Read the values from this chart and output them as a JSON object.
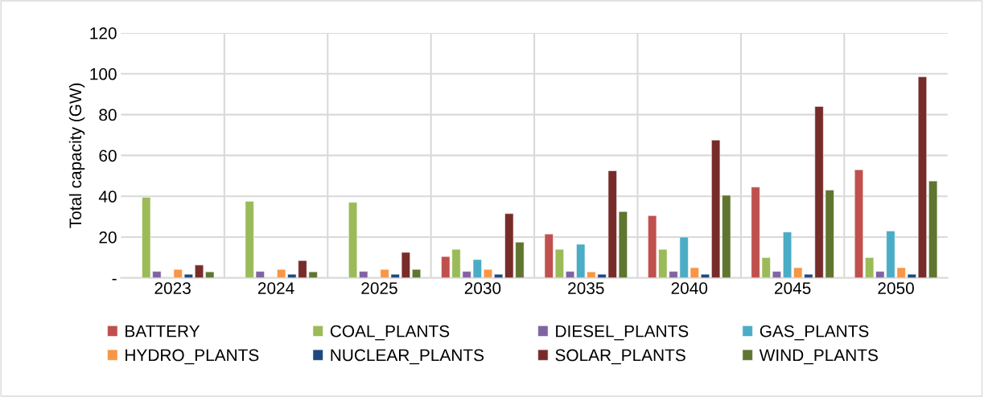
{
  "chart_data": {
    "type": "bar",
    "ylabel": "Total capacity (GW)",
    "categories": [
      "2023",
      "2024",
      "2025",
      "2030",
      "2035",
      "2040",
      "2045",
      "2050"
    ],
    "series": [
      {
        "name": "BATTERY",
        "color": "#c0504d",
        "values": [
          null,
          null,
          null,
          10.5,
          21.5,
          30.5,
          44.5,
          53
        ]
      },
      {
        "name": "COAL_PLANTS",
        "color": "#9bbb59",
        "values": [
          39.5,
          37.5,
          37,
          14,
          14,
          14,
          10,
          10
        ]
      },
      {
        "name": "DIESEL_PLANTS",
        "color": "#8064a2",
        "values": [
          3.2,
          3.2,
          3.2,
          3.2,
          3.2,
          3.2,
          3.2,
          3.2
        ]
      },
      {
        "name": "GAS_PLANTS",
        "color": "#4bacc6",
        "values": [
          null,
          null,
          null,
          9,
          16.5,
          20,
          22.5,
          23
        ]
      },
      {
        "name": "HYDRO_PLANTS",
        "color": "#f79646",
        "values": [
          4.2,
          4.2,
          4.2,
          4.2,
          3,
          5,
          5,
          5
        ]
      },
      {
        "name": "NUCLEAR_PLANTS",
        "color": "#1f497d",
        "values": [
          1.8,
          1.8,
          1.8,
          1.8,
          1.8,
          1.8,
          1.8,
          1.8
        ]
      },
      {
        "name": "SOLAR_PLANTS",
        "color": "#772c2a",
        "values": [
          6.3,
          8.5,
          12.5,
          31.5,
          52.5,
          67.5,
          84,
          98.5
        ]
      },
      {
        "name": "WIND_PLANTS",
        "color": "#5f7530",
        "values": [
          3,
          3,
          4.2,
          17.5,
          32.5,
          40.5,
          43,
          47.5
        ]
      }
    ],
    "ylim": [
      0,
      120
    ],
    "yticks": [
      {
        "value": 0,
        "label": "-"
      },
      20,
      40,
      60,
      80,
      100,
      120
    ],
    "grid": true,
    "legend": "bottom"
  }
}
